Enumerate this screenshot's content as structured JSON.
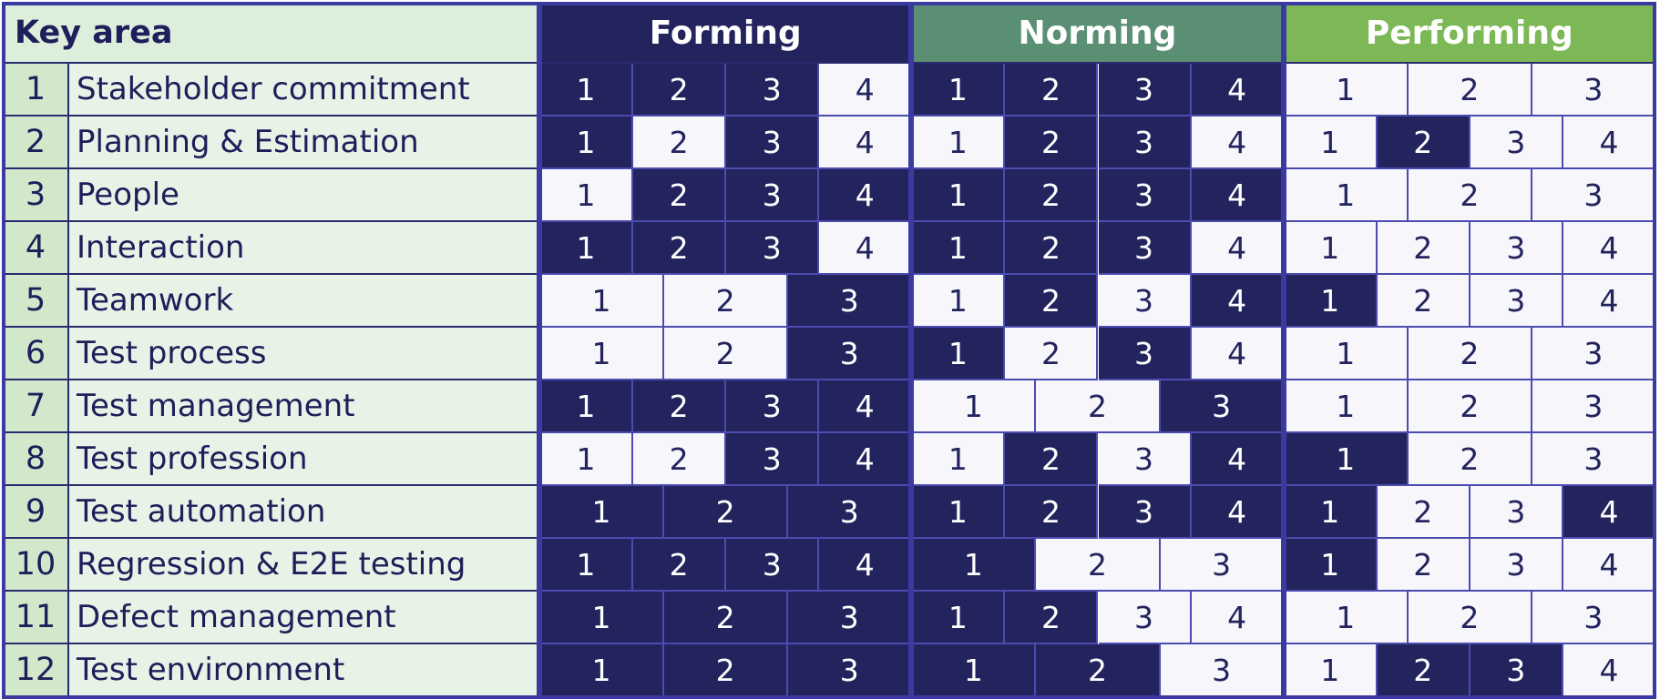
{
  "header": {
    "key_area": "Key area"
  },
  "colors": {
    "filled": "#23235e",
    "empty": "#f6f6fb",
    "forming": "#23235e",
    "norming": "#5a8f74",
    "performing": "#7cb855"
  },
  "phases": [
    {
      "name": "Forming",
      "color": "#23235e"
    },
    {
      "name": "Norming",
      "color": "#5a8f74"
    },
    {
      "name": "Performing",
      "color": "#7cb855"
    }
  ],
  "rows": [
    {
      "num": "1",
      "label": "Stakeholder commitment",
      "forming": {
        "levels": [
          "1",
          "2",
          "3",
          "4"
        ],
        "filled": [
          true,
          true,
          true,
          false
        ]
      },
      "norming": {
        "levels": [
          "1",
          "2",
          "3",
          "4"
        ],
        "filled": [
          true,
          true,
          true,
          true
        ]
      },
      "performing": {
        "levels": [
          "1",
          "2",
          "3"
        ],
        "filled": [
          false,
          false,
          false
        ]
      }
    },
    {
      "num": "2",
      "label": "Planning & Estimation",
      "forming": {
        "levels": [
          "1",
          "2",
          "3",
          "4"
        ],
        "filled": [
          true,
          false,
          true,
          false
        ]
      },
      "norming": {
        "levels": [
          "1",
          "2",
          "3",
          "4"
        ],
        "filled": [
          false,
          true,
          true,
          false
        ]
      },
      "performing": {
        "levels": [
          "1",
          "2",
          "3",
          "4"
        ],
        "filled": [
          false,
          true,
          false,
          false
        ]
      }
    },
    {
      "num": "3",
      "label": "People",
      "forming": {
        "levels": [
          "1",
          "2",
          "3",
          "4"
        ],
        "filled": [
          false,
          true,
          true,
          true
        ]
      },
      "norming": {
        "levels": [
          "1",
          "2",
          "3",
          "4"
        ],
        "filled": [
          true,
          true,
          true,
          true
        ]
      },
      "performing": {
        "levels": [
          "1",
          "2",
          "3"
        ],
        "filled": [
          false,
          false,
          false
        ]
      }
    },
    {
      "num": "4",
      "label": "Interaction",
      "forming": {
        "levels": [
          "1",
          "2",
          "3",
          "4"
        ],
        "filled": [
          true,
          true,
          true,
          false
        ]
      },
      "norming": {
        "levels": [
          "1",
          "2",
          "3",
          "4"
        ],
        "filled": [
          true,
          true,
          true,
          false
        ]
      },
      "performing": {
        "levels": [
          "1",
          "2",
          "3",
          "4"
        ],
        "filled": [
          false,
          false,
          false,
          false
        ]
      }
    },
    {
      "num": "5",
      "label": "Teamwork",
      "forming": {
        "levels": [
          "1",
          "2",
          "3"
        ],
        "filled": [
          false,
          false,
          true
        ]
      },
      "norming": {
        "levels": [
          "1",
          "2",
          "3",
          "4"
        ],
        "filled": [
          false,
          true,
          false,
          true
        ]
      },
      "performing": {
        "levels": [
          "1",
          "2",
          "3",
          "4"
        ],
        "filled": [
          true,
          false,
          false,
          false
        ]
      }
    },
    {
      "num": "6",
      "label": "Test process",
      "forming": {
        "levels": [
          "1",
          "2",
          "3"
        ],
        "filled": [
          false,
          false,
          true
        ]
      },
      "norming": {
        "levels": [
          "1",
          "2",
          "3",
          "4"
        ],
        "filled": [
          true,
          false,
          true,
          false
        ]
      },
      "performing": {
        "levels": [
          "1",
          "2",
          "3"
        ],
        "filled": [
          false,
          false,
          false
        ]
      }
    },
    {
      "num": "7",
      "label": "Test management",
      "forming": {
        "levels": [
          "1",
          "2",
          "3",
          "4"
        ],
        "filled": [
          true,
          true,
          true,
          true
        ]
      },
      "norming": {
        "levels": [
          "1",
          "2",
          "3"
        ],
        "filled": [
          false,
          false,
          true
        ]
      },
      "performing": {
        "levels": [
          "1",
          "2",
          "3"
        ],
        "filled": [
          false,
          false,
          false
        ]
      }
    },
    {
      "num": "8",
      "label": "Test profession",
      "forming": {
        "levels": [
          "1",
          "2",
          "3",
          "4"
        ],
        "filled": [
          false,
          false,
          true,
          true
        ]
      },
      "norming": {
        "levels": [
          "1",
          "2",
          "3",
          "4"
        ],
        "filled": [
          false,
          true,
          false,
          true
        ]
      },
      "performing": {
        "levels": [
          "1",
          "2",
          "3"
        ],
        "filled": [
          true,
          false,
          false
        ]
      }
    },
    {
      "num": "9",
      "label": "Test automation",
      "forming": {
        "levels": [
          "1",
          "2",
          "3"
        ],
        "filled": [
          true,
          true,
          true
        ]
      },
      "norming": {
        "levels": [
          "1",
          "2",
          "3",
          "4"
        ],
        "filled": [
          true,
          true,
          true,
          true
        ]
      },
      "performing": {
        "levels": [
          "1",
          "2",
          "3",
          "4"
        ],
        "filled": [
          true,
          false,
          false,
          true
        ]
      }
    },
    {
      "num": "10",
      "label": "Regression & E2E testing",
      "forming": {
        "levels": [
          "1",
          "2",
          "3",
          "4"
        ],
        "filled": [
          true,
          true,
          true,
          true
        ]
      },
      "norming": {
        "levels": [
          "1",
          "2",
          "3"
        ],
        "filled": [
          true,
          false,
          false
        ]
      },
      "performing": {
        "levels": [
          "1",
          "2",
          "3",
          "4"
        ],
        "filled": [
          true,
          false,
          false,
          false
        ]
      }
    },
    {
      "num": "11",
      "label": "Defect management",
      "forming": {
        "levels": [
          "1",
          "2",
          "3"
        ],
        "filled": [
          true,
          true,
          true
        ]
      },
      "norming": {
        "levels": [
          "1",
          "2",
          "3",
          "4"
        ],
        "filled": [
          true,
          true,
          false,
          false
        ]
      },
      "performing": {
        "levels": [
          "1",
          "2",
          "3"
        ],
        "filled": [
          false,
          false,
          false
        ]
      }
    },
    {
      "num": "12",
      "label": "Test environment",
      "forming": {
        "levels": [
          "1",
          "2",
          "3"
        ],
        "filled": [
          true,
          true,
          true
        ]
      },
      "norming": {
        "levels": [
          "1",
          "2",
          "3"
        ],
        "filled": [
          true,
          true,
          false
        ]
      },
      "performing": {
        "levels": [
          "1",
          "2",
          "3",
          "4"
        ],
        "filled": [
          false,
          true,
          true,
          false
        ]
      }
    }
  ]
}
